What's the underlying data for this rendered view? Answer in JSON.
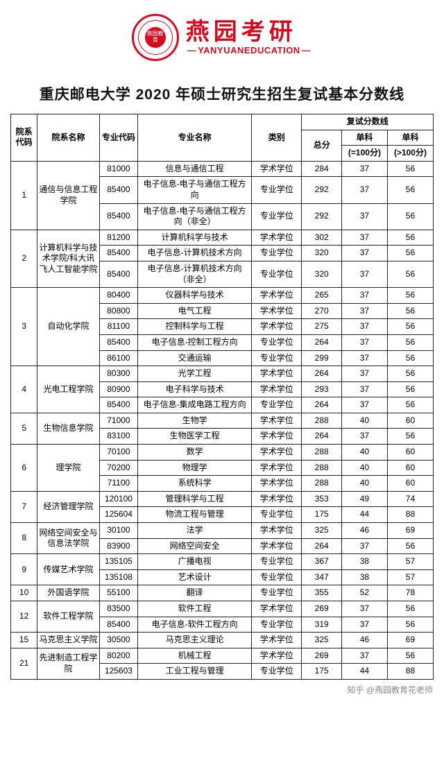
{
  "brand": {
    "cn": "燕园考研",
    "en": "YANYUANEDUCATION",
    "logo_inner": "燕园教育",
    "color": "#d60a1e"
  },
  "title": "重庆邮电大学 2020 年硕士研究生招生复试基本分数线",
  "header": {
    "dept_code": "院系代码",
    "dept_name": "院系名称",
    "major_code": "专业代码",
    "major_name": "专业名称",
    "category": "类别",
    "score_group": "复试分数线",
    "total": "总分",
    "single1": "单科",
    "single1_sub": "(=100分)",
    "single2": "单科",
    "single2_sub": "(>100分)"
  },
  "col_widths": [
    "36",
    "84",
    "52",
    "154",
    "68",
    "54",
    "62",
    "62"
  ],
  "departments": [
    {
      "code": "1",
      "name": "通信与信息工程学院",
      "rows": [
        {
          "major_code": "81000",
          "major_name": "信息与通信工程",
          "cat": "学术学位",
          "total": "284",
          "s1": "37",
          "s2": "56"
        },
        {
          "major_code": "85400",
          "major_name": "电子信息-电子与通信工程方向",
          "cat": "专业学位",
          "total": "292",
          "s1": "37",
          "s2": "56"
        },
        {
          "major_code": "85400",
          "major_name": "电子信息-电子与通信工程方向（非全）",
          "cat": "专业学位",
          "total": "292",
          "s1": "37",
          "s2": "56"
        }
      ]
    },
    {
      "code": "2",
      "name": "计算机科学与技术学院/科大讯飞人工智能学院",
      "rows": [
        {
          "major_code": "81200",
          "major_name": "计算机科学与技术",
          "cat": "学术学位",
          "total": "302",
          "s1": "37",
          "s2": "56"
        },
        {
          "major_code": "85400",
          "major_name": "电子信息-计算机技术方向",
          "cat": "专业学位",
          "total": "320",
          "s1": "37",
          "s2": "56"
        },
        {
          "major_code": "85400",
          "major_name": "电子信息-计算机技术方向（非全）",
          "cat": "专业学位",
          "total": "320",
          "s1": "37",
          "s2": "56"
        }
      ]
    },
    {
      "code": "3",
      "name": "自动化学院",
      "rows": [
        {
          "major_code": "80400",
          "major_name": "仪器科学与技术",
          "cat": "学术学位",
          "total": "265",
          "s1": "37",
          "s2": "56"
        },
        {
          "major_code": "80800",
          "major_name": "电气工程",
          "cat": "学术学位",
          "total": "270",
          "s1": "37",
          "s2": "56"
        },
        {
          "major_code": "81100",
          "major_name": "控制科学与工程",
          "cat": "学术学位",
          "total": "275",
          "s1": "37",
          "s2": "56"
        },
        {
          "major_code": "85400",
          "major_name": "电子信息-控制工程方向",
          "cat": "专业学位",
          "total": "264",
          "s1": "37",
          "s2": "56"
        },
        {
          "major_code": "86100",
          "major_name": "交通运输",
          "cat": "专业学位",
          "total": "299",
          "s1": "37",
          "s2": "56"
        }
      ]
    },
    {
      "code": "4",
      "name": "光电工程学院",
      "rows": [
        {
          "major_code": "80300",
          "major_name": "光学工程",
          "cat": "学术学位",
          "total": "264",
          "s1": "37",
          "s2": "56"
        },
        {
          "major_code": "80900",
          "major_name": "电子科学与技术",
          "cat": "学术学位",
          "total": "293",
          "s1": "37",
          "s2": "56"
        },
        {
          "major_code": "85400",
          "major_name": "电子信息-集成电路工程方向",
          "cat": "专业学位",
          "total": "264",
          "s1": "37",
          "s2": "56"
        }
      ]
    },
    {
      "code": "5",
      "name": "生物信息学院",
      "rows": [
        {
          "major_code": "71000",
          "major_name": "生物学",
          "cat": "学术学位",
          "total": "288",
          "s1": "40",
          "s2": "60"
        },
        {
          "major_code": "83100",
          "major_name": "生物医学工程",
          "cat": "学术学位",
          "total": "264",
          "s1": "37",
          "s2": "56"
        }
      ]
    },
    {
      "code": "6",
      "name": "理学院",
      "rows": [
        {
          "major_code": "70100",
          "major_name": "数学",
          "cat": "学术学位",
          "total": "288",
          "s1": "40",
          "s2": "60"
        },
        {
          "major_code": "70200",
          "major_name": "物理学",
          "cat": "学术学位",
          "total": "288",
          "s1": "40",
          "s2": "60"
        },
        {
          "major_code": "71100",
          "major_name": "系统科学",
          "cat": "学术学位",
          "total": "288",
          "s1": "40",
          "s2": "60"
        }
      ]
    },
    {
      "code": "7",
      "name": "经济管理学院",
      "rows": [
        {
          "major_code": "120100",
          "major_name": "管理科学与工程",
          "cat": "学术学位",
          "total": "353",
          "s1": "49",
          "s2": "74"
        },
        {
          "major_code": "125604",
          "major_name": "物流工程与管理",
          "cat": "专业学位",
          "total": "175",
          "s1": "44",
          "s2": "88"
        }
      ]
    },
    {
      "code": "8",
      "name": "网络空间安全与信息法学院",
      "rows": [
        {
          "major_code": "30100",
          "major_name": "法学",
          "cat": "学术学位",
          "total": "325",
          "s1": "46",
          "s2": "69"
        },
        {
          "major_code": "83900",
          "major_name": "网络空间安全",
          "cat": "学术学位",
          "total": "264",
          "s1": "37",
          "s2": "56"
        }
      ]
    },
    {
      "code": "9",
      "name": "传媒艺术学院",
      "rows": [
        {
          "major_code": "135105",
          "major_name": "广播电视",
          "cat": "专业学位",
          "total": "367",
          "s1": "38",
          "s2": "57"
        },
        {
          "major_code": "135108",
          "major_name": "艺术设计",
          "cat": "专业学位",
          "total": "347",
          "s1": "38",
          "s2": "57"
        }
      ]
    },
    {
      "code": "10",
      "name": "外国语学院",
      "rows": [
        {
          "major_code": "55100",
          "major_name": "翻译",
          "cat": "专业学位",
          "total": "355",
          "s1": "52",
          "s2": "78"
        }
      ]
    },
    {
      "code": "12",
      "name": "软件工程学院",
      "rows": [
        {
          "major_code": "83500",
          "major_name": "软件工程",
          "cat": "学术学位",
          "total": "269",
          "s1": "37",
          "s2": "56"
        },
        {
          "major_code": "85400",
          "major_name": "电子信息-软件工程方向",
          "cat": "专业学位",
          "total": "319",
          "s1": "37",
          "s2": "56"
        }
      ]
    },
    {
      "code": "15",
      "name": "马克思主义学院",
      "rows": [
        {
          "major_code": "30500",
          "major_name": "马克思主义理论",
          "cat": "学术学位",
          "total": "325",
          "s1": "46",
          "s2": "69"
        }
      ]
    },
    {
      "code": "21",
      "name": "先进制造工程学院",
      "rows": [
        {
          "major_code": "80200",
          "major_name": "机械工程",
          "cat": "学术学位",
          "total": "269",
          "s1": "37",
          "s2": "56"
        },
        {
          "major_code": "125603",
          "major_name": "工业工程与管理",
          "cat": "专业学位",
          "total": "175",
          "s1": "44",
          "s2": "88"
        }
      ]
    }
  ],
  "footer": "知乎 @燕园教育花老师"
}
